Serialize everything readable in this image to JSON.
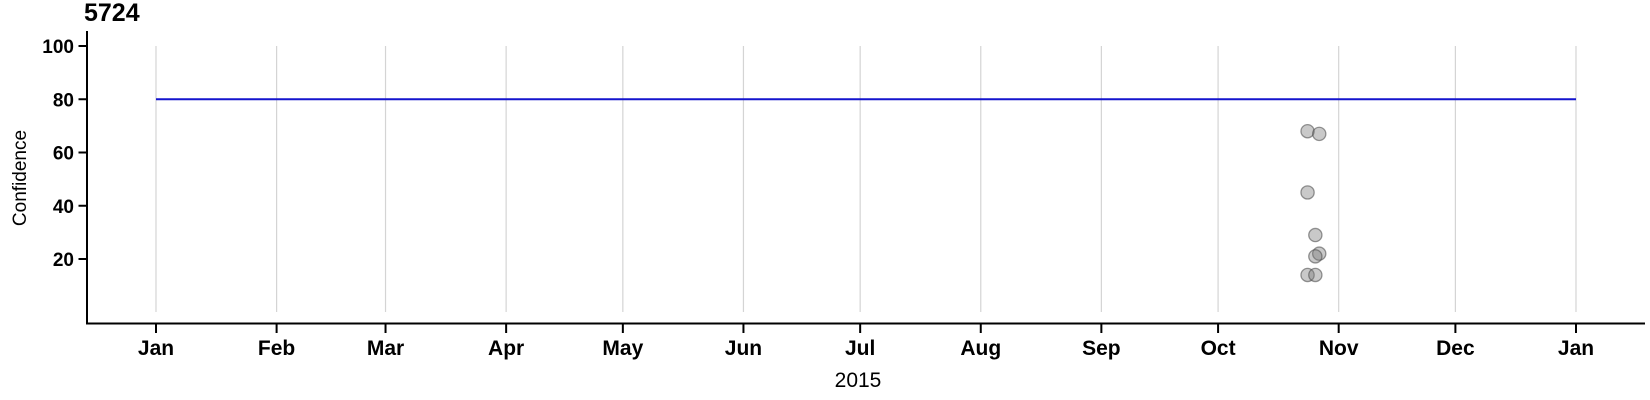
{
  "chart_data": {
    "type": "scatter",
    "title": "5724",
    "xlabel": "2015",
    "ylabel": "Confidence",
    "x_axis": {
      "start": "2015-01-01",
      "end": "2016-01-01",
      "tick_labels": [
        "Jan",
        "Feb",
        "Mar",
        "Apr",
        "May",
        "Jun",
        "Jul",
        "Aug",
        "Sep",
        "Oct",
        "Nov",
        "Dec",
        "Jan"
      ],
      "grid": "vertical-monthly"
    },
    "y_axis": {
      "ticks": [
        20,
        40,
        60,
        80,
        100
      ],
      "range": [
        0,
        100
      ]
    },
    "reference_line": {
      "y": 80,
      "x_start": "2015-01-01",
      "x_end": "2016-01-01"
    },
    "points": [
      {
        "date": "2015-10-24",
        "confidence": 68
      },
      {
        "date": "2015-10-27",
        "confidence": 67
      },
      {
        "date": "2015-10-24",
        "confidence": 45
      },
      {
        "date": "2015-10-26",
        "confidence": 29
      },
      {
        "date": "2015-10-27",
        "confidence": 22
      },
      {
        "date": "2015-10-26",
        "confidence": 21
      },
      {
        "date": "2015-10-24",
        "confidence": 14
      },
      {
        "date": "2015-10-26",
        "confidence": 14
      }
    ],
    "colors": {
      "reference_line": "#1414CD",
      "gridline": "#d4d4d4",
      "axis": "#000000",
      "point_fill": "rgba(120,120,120,0.40)",
      "point_stroke": "rgba(70,70,70,0.55)",
      "text": "#000000"
    }
  }
}
